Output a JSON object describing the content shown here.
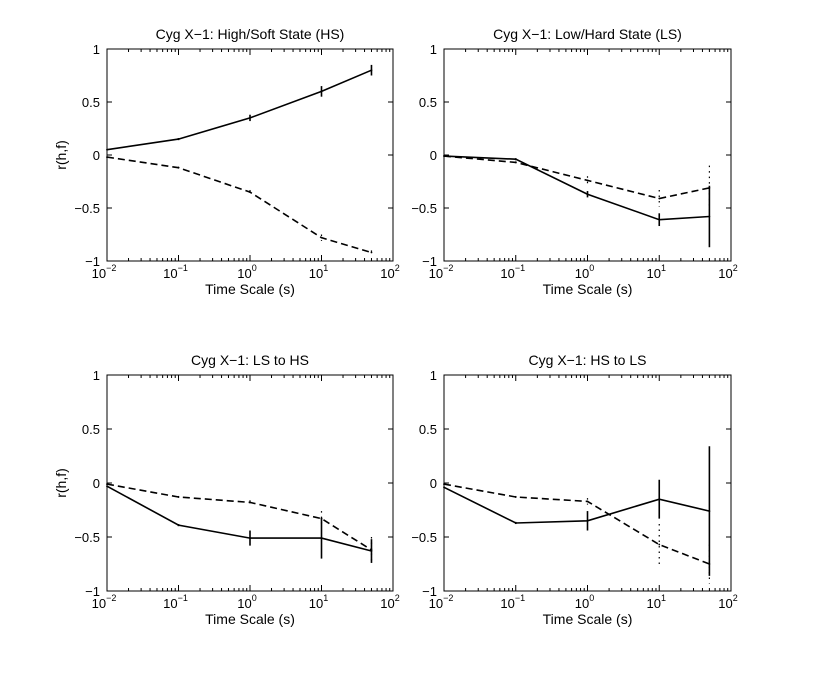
{
  "chart_data": [
    {
      "type": "line",
      "title": "Cyg X−1: High/Soft State (HS)",
      "xlabel": "Time Scale (s)",
      "ylabel": "r(h,f)",
      "xscale": "log",
      "xlim": [
        0.01,
        100
      ],
      "ylim": [
        -1,
        1
      ],
      "yticks": [
        "−1",
        "−0.5",
        "0",
        "0.5",
        "1"
      ],
      "xticks": [
        {
          "base": "10",
          "exp": "−2"
        },
        {
          "base": "10",
          "exp": "−1"
        },
        {
          "base": "10",
          "exp": "0"
        },
        {
          "base": "10",
          "exp": "1"
        },
        {
          "base": "10",
          "exp": "2"
        }
      ],
      "series": [
        {
          "name": "solid",
          "style": "solid",
          "x": [
            0.01,
            0.1,
            1,
            10,
            50
          ],
          "y": [
            0.05,
            0.15,
            0.35,
            0.6,
            0.8
          ],
          "err": [
            0,
            0.01,
            0.03,
            0.05,
            0.05
          ]
        },
        {
          "name": "dashed",
          "style": "dashed",
          "x": [
            0.01,
            0.1,
            1,
            10,
            50
          ],
          "y": [
            -0.02,
            -0.12,
            -0.35,
            -0.78,
            -0.92
          ],
          "err": [
            0,
            0.01,
            0.02,
            0.03,
            0.02
          ]
        }
      ]
    },
    {
      "type": "line",
      "title": "Cyg X−1: Low/Hard State (LS)",
      "xlabel": "Time Scale (s)",
      "ylabel": "",
      "xscale": "log",
      "xlim": [
        0.01,
        100
      ],
      "ylim": [
        -1,
        1
      ],
      "yticks": [
        "−1",
        "−0.5",
        "0",
        "0.5",
        "1"
      ],
      "xticks": [
        {
          "base": "10",
          "exp": "−2"
        },
        {
          "base": "10",
          "exp": "−1"
        },
        {
          "base": "10",
          "exp": "0"
        },
        {
          "base": "10",
          "exp": "1"
        },
        {
          "base": "10",
          "exp": "2"
        }
      ],
      "series": [
        {
          "name": "solid",
          "style": "solid",
          "x": [
            0.01,
            0.1,
            1,
            10,
            50
          ],
          "y": [
            -0.01,
            -0.04,
            -0.37,
            -0.61,
            -0.58
          ],
          "err": [
            0,
            0.01,
            0.03,
            0.06,
            0.29
          ]
        },
        {
          "name": "dashed",
          "style": "dashed",
          "x": [
            0.01,
            0.1,
            1,
            10,
            50
          ],
          "y": [
            -0.01,
            -0.07,
            -0.24,
            -0.41,
            -0.31
          ],
          "err": [
            0,
            0.01,
            0.04,
            0.08,
            0.21
          ]
        }
      ]
    },
    {
      "type": "line",
      "title": "Cyg X−1: LS to HS",
      "xlabel": "Time Scale (s)",
      "ylabel": "r(h,f)",
      "xscale": "log",
      "xlim": [
        0.01,
        100
      ],
      "ylim": [
        -1,
        1
      ],
      "yticks": [
        "−1",
        "−0.5",
        "0",
        "0.5",
        "1"
      ],
      "xticks": [
        {
          "base": "10",
          "exp": "−2"
        },
        {
          "base": "10",
          "exp": "−1"
        },
        {
          "base": "10",
          "exp": "0"
        },
        {
          "base": "10",
          "exp": "1"
        },
        {
          "base": "10",
          "exp": "2"
        }
      ],
      "series": [
        {
          "name": "solid",
          "style": "solid",
          "x": [
            0.01,
            0.1,
            1,
            10,
            50
          ],
          "y": [
            -0.03,
            -0.39,
            -0.51,
            -0.51,
            -0.63
          ],
          "err": [
            0,
            0.01,
            0.07,
            0.19,
            0.11
          ]
        },
        {
          "name": "dashed",
          "style": "dashed",
          "x": [
            0.01,
            0.1,
            1,
            10,
            50
          ],
          "y": [
            -0.01,
            -0.13,
            -0.18,
            -0.33,
            -0.62
          ],
          "err": [
            0,
            0.01,
            0.02,
            0.07,
            0.12
          ]
        }
      ]
    },
    {
      "type": "line",
      "title": "Cyg X−1: HS to LS",
      "xlabel": "Time Scale (s)",
      "ylabel": "",
      "xscale": "log",
      "xlim": [
        0.01,
        100
      ],
      "ylim": [
        -1,
        1
      ],
      "yticks": [
        "−1",
        "−0.5",
        "0",
        "0.5",
        "1"
      ],
      "xticks": [
        {
          "base": "10",
          "exp": "−2"
        },
        {
          "base": "10",
          "exp": "−1"
        },
        {
          "base": "10",
          "exp": "0"
        },
        {
          "base": "10",
          "exp": "1"
        },
        {
          "base": "10",
          "exp": "2"
        }
      ],
      "series": [
        {
          "name": "solid",
          "style": "solid",
          "x": [
            0.01,
            0.1,
            1,
            10,
            50
          ],
          "y": [
            -0.04,
            -0.37,
            -0.35,
            -0.15,
            -0.26
          ],
          "err": [
            0,
            0.01,
            0.09,
            0.18,
            0.6
          ]
        },
        {
          "name": "dashed",
          "style": "dashed",
          "x": [
            0.01,
            0.1,
            1,
            10,
            50
          ],
          "y": [
            -0.01,
            -0.13,
            -0.17,
            -0.57,
            -0.75
          ],
          "err": [
            0,
            0.01,
            0.03,
            0.19,
            0.18
          ]
        }
      ]
    }
  ]
}
